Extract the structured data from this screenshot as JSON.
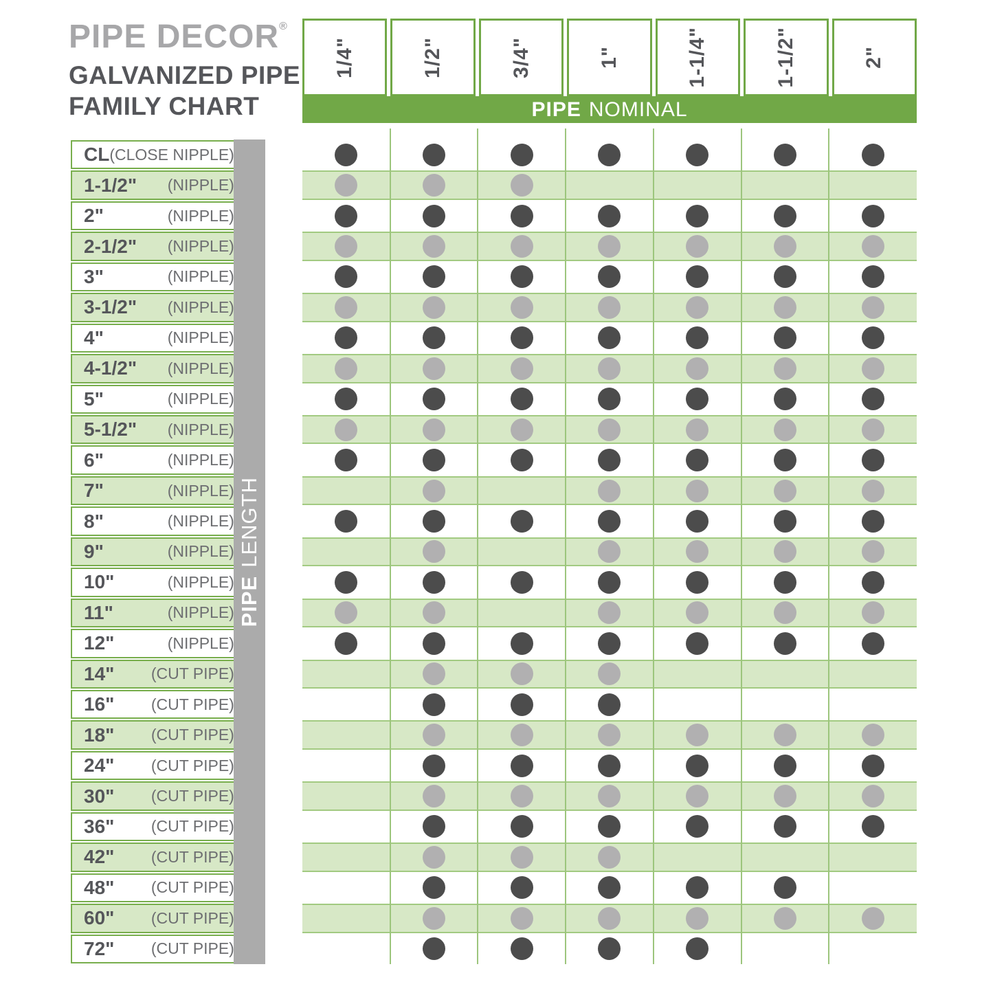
{
  "brand": {
    "logo": "PIPE DECOR",
    "reg": "®",
    "title_line1": "GALVANIZED PIPE",
    "title_line2": "FAMILY CHART"
  },
  "axes": {
    "col_header_bold": "PIPE",
    "col_header_rest": "NOMINAL",
    "row_header_bold": "PIPE",
    "row_header_rest": "LENGTH"
  },
  "colors": {
    "green": "#71a847",
    "band_bg": "#d7e8c6",
    "band_border": "#a2ca81",
    "line": "#9cc57c",
    "gray_bar": "#ababab",
    "dark_dot": "#4c4c4c",
    "gray_dot": "#b1b0b1",
    "text_dark": "#55565a",
    "text_muted": "#6d6e71",
    "logo_gray": "#a7a7a9"
  },
  "chart_data": {
    "type": "table",
    "title": "PIPE DECOR GALVANIZED PIPE FAMILY CHART",
    "xlabel": "PIPE NOMINAL",
    "ylabel": "PIPE LENGTH",
    "columns": [
      "1/4\"",
      "1/2\"",
      "3/4\"",
      "1\"",
      "1-1/4\"",
      "1-1/2\"",
      "2\""
    ],
    "rows": [
      {
        "size": "CL",
        "type": "(CLOSE NIPPLE)",
        "dots": [
          1,
          1,
          1,
          1,
          1,
          1,
          1
        ]
      },
      {
        "size": "1-1/2\"",
        "type": "(NIPPLE)",
        "dots": [
          1,
          1,
          1,
          0,
          0,
          0,
          0
        ]
      },
      {
        "size": "2\"",
        "type": "(NIPPLE)",
        "dots": [
          1,
          1,
          1,
          1,
          1,
          1,
          1
        ]
      },
      {
        "size": "2-1/2\"",
        "type": "(NIPPLE)",
        "dots": [
          1,
          1,
          1,
          1,
          1,
          1,
          1
        ]
      },
      {
        "size": "3\"",
        "type": "(NIPPLE)",
        "dots": [
          1,
          1,
          1,
          1,
          1,
          1,
          1
        ]
      },
      {
        "size": "3-1/2\"",
        "type": "(NIPPLE)",
        "dots": [
          1,
          1,
          1,
          1,
          1,
          1,
          1
        ]
      },
      {
        "size": "4\"",
        "type": "(NIPPLE)",
        "dots": [
          1,
          1,
          1,
          1,
          1,
          1,
          1
        ]
      },
      {
        "size": "4-1/2\"",
        "type": "(NIPPLE)",
        "dots": [
          1,
          1,
          1,
          1,
          1,
          1,
          1
        ]
      },
      {
        "size": "5\"",
        "type": "(NIPPLE)",
        "dots": [
          1,
          1,
          1,
          1,
          1,
          1,
          1
        ]
      },
      {
        "size": "5-1/2\"",
        "type": "(NIPPLE)",
        "dots": [
          1,
          1,
          1,
          1,
          1,
          1,
          1
        ]
      },
      {
        "size": "6\"",
        "type": "(NIPPLE)",
        "dots": [
          1,
          1,
          1,
          1,
          1,
          1,
          1
        ]
      },
      {
        "size": "7\"",
        "type": "(NIPPLE)",
        "dots": [
          0,
          1,
          0,
          1,
          1,
          1,
          1
        ]
      },
      {
        "size": "8\"",
        "type": "(NIPPLE)",
        "dots": [
          1,
          1,
          1,
          1,
          1,
          1,
          1
        ]
      },
      {
        "size": "9\"",
        "type": "(NIPPLE)",
        "dots": [
          0,
          1,
          0,
          1,
          1,
          1,
          1
        ]
      },
      {
        "size": "10\"",
        "type": "(NIPPLE)",
        "dots": [
          1,
          1,
          1,
          1,
          1,
          1,
          1
        ]
      },
      {
        "size": "11\"",
        "type": "(NIPPLE)",
        "dots": [
          1,
          1,
          0,
          1,
          1,
          1,
          1
        ]
      },
      {
        "size": "12\"",
        "type": "(NIPPLE)",
        "dots": [
          1,
          1,
          1,
          1,
          1,
          1,
          1
        ]
      },
      {
        "size": "14\"",
        "type": "(CUT PIPE)",
        "dots": [
          0,
          1,
          1,
          1,
          0,
          0,
          0
        ]
      },
      {
        "size": "16\"",
        "type": "(CUT PIPE)",
        "dots": [
          0,
          1,
          1,
          1,
          0,
          0,
          0
        ]
      },
      {
        "size": "18\"",
        "type": "(CUT PIPE)",
        "dots": [
          0,
          1,
          1,
          1,
          1,
          1,
          1
        ]
      },
      {
        "size": "24\"",
        "type": "(CUT PIPE)",
        "dots": [
          0,
          1,
          1,
          1,
          1,
          1,
          1
        ]
      },
      {
        "size": "30\"",
        "type": "(CUT PIPE)",
        "dots": [
          0,
          1,
          1,
          1,
          1,
          1,
          1
        ]
      },
      {
        "size": "36\"",
        "type": "(CUT PIPE)",
        "dots": [
          0,
          1,
          1,
          1,
          1,
          1,
          1
        ]
      },
      {
        "size": "42\"",
        "type": "(CUT PIPE)",
        "dots": [
          0,
          1,
          1,
          1,
          0,
          0,
          0
        ]
      },
      {
        "size": "48\"",
        "type": "(CUT PIPE)",
        "dots": [
          0,
          1,
          1,
          1,
          1,
          1,
          0
        ]
      },
      {
        "size": "60\"",
        "type": "(CUT PIPE)",
        "dots": [
          0,
          1,
          1,
          1,
          1,
          1,
          1
        ]
      },
      {
        "size": "72\"",
        "type": "(CUT PIPE)",
        "dots": [
          0,
          1,
          1,
          1,
          1,
          0,
          0
        ]
      }
    ]
  }
}
